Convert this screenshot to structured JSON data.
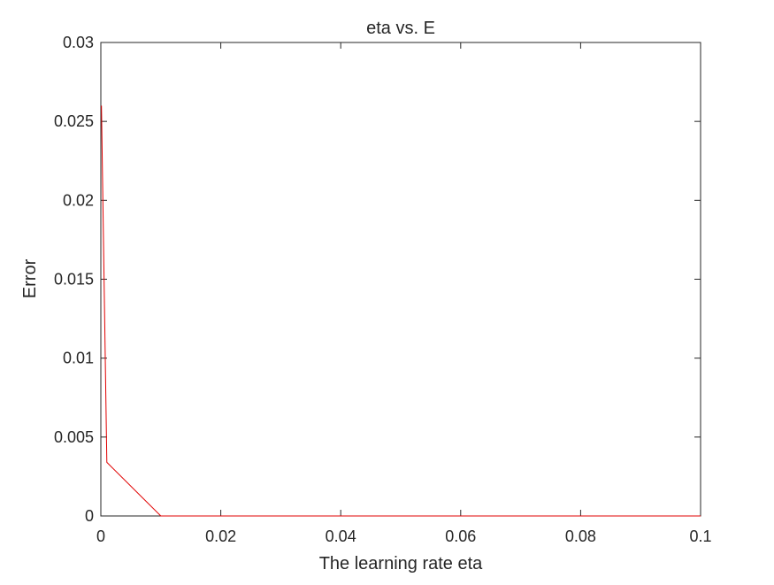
{
  "chart_data": {
    "type": "line",
    "title": "eta vs. E",
    "xlabel": "The learning rate eta",
    "ylabel": "Error",
    "xlim": [
      0,
      0.1
    ],
    "ylim": [
      0,
      0.03
    ],
    "xticks": [
      0,
      0.02,
      0.04,
      0.06,
      0.08,
      0.1
    ],
    "xtick_labels": [
      "0",
      "0.02",
      "0.04",
      "0.06",
      "0.08",
      "0.1"
    ],
    "yticks": [
      0,
      0.005,
      0.01,
      0.015,
      0.02,
      0.025,
      0.03
    ],
    "ytick_labels": [
      "0",
      "0.005",
      "0.01",
      "0.015",
      "0.02",
      "0.025",
      "0.03"
    ],
    "grid": false,
    "series": [
      {
        "color": "#e00000",
        "x": [
          0.0001,
          0.001,
          0.01,
          0.1
        ],
        "y": [
          0.026,
          0.0034,
          0.0,
          0.0
        ]
      }
    ]
  }
}
